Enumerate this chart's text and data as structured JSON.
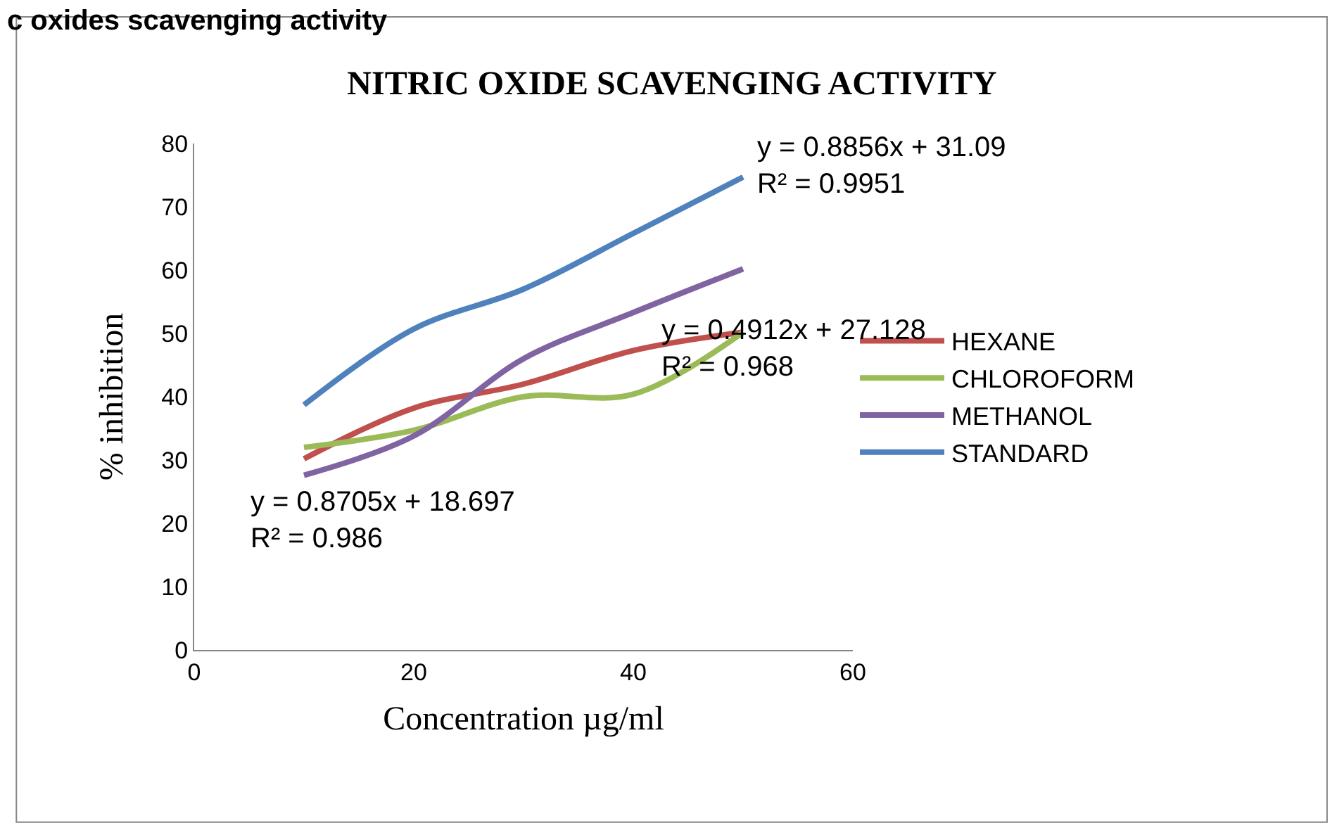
{
  "chart_data": {
    "type": "line",
    "title": "NITRIC OXIDE SCAVENGING ACTIVITY",
    "xlabel": "Concentration µg/ml",
    "ylabel": "% inhibition",
    "x": [
      10,
      20,
      30,
      40,
      50
    ],
    "series": [
      {
        "name": "HEXANE",
        "color": "#c0504d",
        "values": [
          30.2,
          38.2,
          42,
          47.3,
          50.2
        ]
      },
      {
        "name": "CHLOROFORM",
        "color": "#9bbb59",
        "values": [
          32,
          34.7,
          40,
          40.4,
          50.2
        ]
      },
      {
        "name": "METHANOL",
        "color": "#8064a2",
        "values": [
          27.6,
          33.8,
          46,
          53.3,
          60.2
        ]
      },
      {
        "name": "STANDARD",
        "color": "#4f81bd",
        "values": [
          38.7,
          50.7,
          57,
          65.8,
          74.7
        ]
      }
    ],
    "annotations": [
      "c oxides scavenging activity",
      "y = 0.8856x + 31.09\nR² = 0.9951",
      "y = 0.4912x + 27.128\nR² = 0.968",
      "y = 0.8705x + 18.697\nR² = 0.986"
    ],
    "xlim": [
      0,
      60
    ],
    "xticks": [
      0,
      20,
      40,
      60
    ],
    "ylim": [
      0,
      80
    ],
    "yticks": [
      0,
      10,
      20,
      30,
      40,
      50,
      60,
      70,
      80
    ],
    "legend": "right",
    "marker": "none",
    "line_style": "solid"
  }
}
